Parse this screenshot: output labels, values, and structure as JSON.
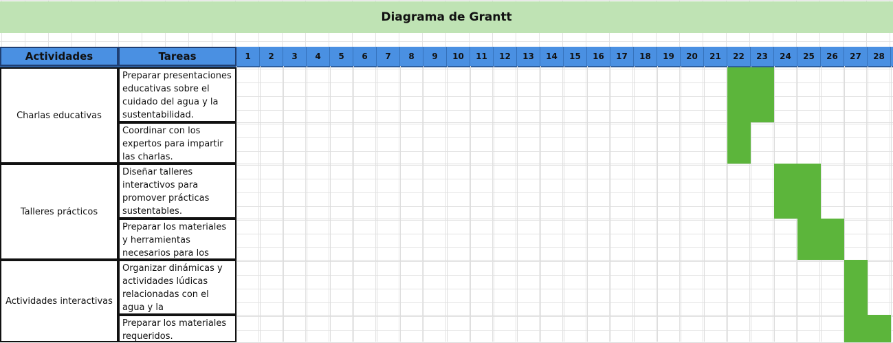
{
  "chart_data": {
    "type": "table",
    "title": "Diagrama de Grantt",
    "header": {
      "activities_label": "Actividades",
      "tasks_label": "Tareas",
      "days": [
        "1",
        "2",
        "3",
        "4",
        "5",
        "6",
        "7",
        "8",
        "9",
        "10",
        "11",
        "12",
        "13",
        "14",
        "15",
        "16",
        "17",
        "18",
        "19",
        "20",
        "21",
        "22",
        "23",
        "24",
        "25",
        "26",
        "27",
        "28"
      ]
    },
    "activities": [
      {
        "name": "Charlas educativas",
        "tasks": [
          {
            "label": "Preparar presentaciones educativas sobre el cuidado del agua y la sustentabilidad.",
            "start": 22,
            "end": 23
          },
          {
            "label": "Coordinar con los expertos para impartir las charlas.",
            "start": 22,
            "end": 22
          }
        ]
      },
      {
        "name": "Talleres prácticos",
        "tasks": [
          {
            "label": "Diseñar talleres interactivos para promover prácticas sustentables.",
            "start": 24,
            "end": 25
          },
          {
            "label": "Preparar los materiales y herramientas necesarios para los talleres.",
            "start": 25,
            "end": 26
          }
        ]
      },
      {
        "name": "Actividades interactivas",
        "tasks": [
          {
            "label": "Organizar dinámicas y actividades lúdicas relacionadas con el agua y la sustentabilidad.",
            "start": 27,
            "end": 27
          },
          {
            "label": "Preparar los materiales requeridos.",
            "start": 27,
            "end": 28
          }
        ]
      }
    ],
    "bar_color": "#5cb53b",
    "header_color": "#4a90e2",
    "title_color": "#bfe3b4"
  }
}
